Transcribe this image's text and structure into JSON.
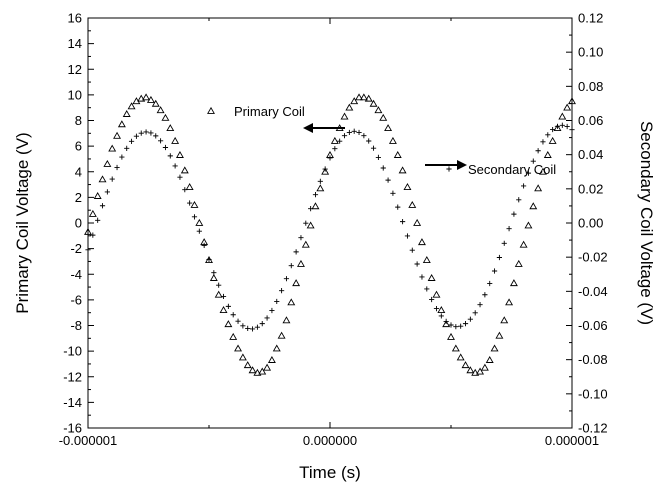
{
  "chart_data": {
    "type": "scatter",
    "xlabel": "Time (s)",
    "ylabel_left": "Primary Coil Voltage (V)",
    "ylabel_right": "Secondary Coil Voltage (V)",
    "xlim": [
      -1e-06,
      1e-06
    ],
    "ylim_left": [
      -16,
      16
    ],
    "ylim_right": [
      -0.12,
      0.12
    ],
    "x_tick_labels": [
      "-0.000001",
      "0.000000",
      "0.000001"
    ],
    "y_left_tick_labels": [
      "-16",
      "-14",
      "-12",
      "-10",
      "-8",
      "-6",
      "-4",
      "-2",
      "0",
      "2",
      "4",
      "6",
      "8",
      "10",
      "12",
      "14",
      "16"
    ],
    "y_right_tick_labels": [
      "-0.12",
      "-0.10",
      "-0.08",
      "-0.06",
      "-0.04",
      "-0.02",
      "0.00",
      "0.02",
      "0.04",
      "0.06",
      "0.08",
      "0.10",
      "0.12"
    ],
    "grid": false,
    "legend": [
      {
        "name": "Primary Coil",
        "marker": "triangle-open",
        "axis": "left"
      },
      {
        "name": "Secondary Coil",
        "marker": "plus",
        "axis": "right"
      }
    ],
    "series": [
      {
        "name": "Primary Coil",
        "marker": "triangle-open",
        "axis": "left",
        "x": [
          -1e-06,
          -9.8e-07,
          -9.6e-07,
          -9.4e-07,
          -9.2e-07,
          -9e-07,
          -8.8e-07,
          -8.6e-07,
          -8.4e-07,
          -8.2e-07,
          -8e-07,
          -7.8e-07,
          -7.6e-07,
          -7.4e-07,
          -7.2e-07,
          -7e-07,
          -6.8e-07,
          -6.6e-07,
          -6.4e-07,
          -6.2e-07,
          -6e-07,
          -5.8e-07,
          -5.6e-07,
          -5.4e-07,
          -5.2e-07,
          -5e-07,
          -4.8e-07,
          -4.6e-07,
          -4.4e-07,
          -4.2e-07,
          -4e-07,
          -3.8e-07,
          -3.6e-07,
          -3.4e-07,
          -3.2e-07,
          -3e-07,
          -2.8e-07,
          -2.6e-07,
          -2.4e-07,
          -2.2e-07,
          -2e-07,
          -1.8e-07,
          -1.6e-07,
          -1.4e-07,
          -1.2e-07,
          -1e-07,
          -8e-08,
          -6e-08,
          -4e-08,
          -2e-08,
          0.0,
          2e-08,
          4e-08,
          6e-08,
          8e-08,
          1e-07,
          1.2e-07,
          1.4e-07,
          1.6e-07,
          1.8e-07,
          2e-07,
          2.2e-07,
          2.4e-07,
          2.6e-07,
          2.8e-07,
          3e-07,
          3.2e-07,
          3.4e-07,
          3.6e-07,
          3.8e-07,
          4e-07,
          4.2e-07,
          4.4e-07,
          4.6e-07,
          4.8e-07,
          5e-07,
          5.2e-07,
          5.4e-07,
          5.6e-07,
          5.8e-07,
          6e-07,
          6.2e-07,
          6.4e-07,
          6.6e-07,
          6.8e-07,
          7e-07,
          7.2e-07,
          7.4e-07,
          7.6e-07,
          7.8e-07,
          8e-07,
          8.2e-07,
          8.4e-07,
          8.6e-07,
          8.8e-07,
          9e-07,
          9.2e-07,
          9.4e-07,
          9.6e-07,
          9.8e-07,
          1e-06
        ],
        "y": [
          -0.7,
          0.7,
          2.1,
          3.4,
          4.6,
          5.8,
          6.8,
          7.7,
          8.5,
          9.1,
          9.5,
          9.7,
          9.8,
          9.6,
          9.3,
          8.8,
          8.2,
          7.4,
          6.4,
          5.3,
          4.1,
          2.8,
          1.4,
          -0.0,
          -1.5,
          -2.9,
          -4.3,
          -5.6,
          -6.8,
          -7.9,
          -8.9,
          -9.8,
          -10.5,
          -11.1,
          -11.5,
          -11.7,
          -11.6,
          -11.3,
          -10.7,
          -9.8,
          -8.8,
          -7.6,
          -6.2,
          -4.7,
          -3.2,
          -1.7,
          -0.2,
          1.3,
          2.7,
          4.0,
          5.3,
          6.4,
          7.4,
          8.3,
          9.0,
          9.5,
          9.8,
          9.8,
          9.7,
          9.3,
          8.8,
          8.2,
          7.4,
          6.4,
          5.3,
          4.1,
          2.8,
          1.4,
          -0.0,
          -1.5,
          -2.9,
          -4.3,
          -5.6,
          -6.8,
          -7.9,
          -8.9,
          -9.8,
          -10.5,
          -11.1,
          -11.5,
          -11.7,
          -11.6,
          -11.3,
          -10.7,
          -9.8,
          -8.8,
          -7.6,
          -6.2,
          -4.7,
          -3.2,
          -1.7,
          -0.2,
          1.3,
          2.7,
          4.0,
          5.3,
          6.4,
          7.4,
          8.3,
          9.0,
          9.5
        ]
      },
      {
        "name": "Secondary Coil",
        "marker": "plus",
        "axis": "right",
        "x": [
          -1e-06,
          -9.8e-07,
          -9.6e-07,
          -9.4e-07,
          -9.2e-07,
          -9e-07,
          -8.8e-07,
          -8.6e-07,
          -8.4e-07,
          -8.2e-07,
          -8e-07,
          -7.8e-07,
          -7.6e-07,
          -7.4e-07,
          -7.2e-07,
          -7e-07,
          -6.8e-07,
          -6.6e-07,
          -6.4e-07,
          -6.2e-07,
          -6e-07,
          -5.8e-07,
          -5.6e-07,
          -5.4e-07,
          -5.2e-07,
          -5e-07,
          -4.8e-07,
          -4.6e-07,
          -4.4e-07,
          -4.2e-07,
          -4e-07,
          -3.8e-07,
          -3.6e-07,
          -3.4e-07,
          -3.2e-07,
          -3e-07,
          -2.8e-07,
          -2.6e-07,
          -2.4e-07,
          -2.2e-07,
          -2e-07,
          -1.8e-07,
          -1.6e-07,
          -1.4e-07,
          -1.2e-07,
          -1e-07,
          -8e-08,
          -6e-08,
          -4e-08,
          -2e-08,
          0.0,
          2e-08,
          4e-08,
          6e-08,
          8e-08,
          1e-07,
          1.2e-07,
          1.4e-07,
          1.6e-07,
          1.8e-07,
          2e-07,
          2.2e-07,
          2.4e-07,
          2.6e-07,
          2.8e-07,
          3e-07,
          3.2e-07,
          3.4e-07,
          3.6e-07,
          3.8e-07,
          4e-07,
          4.2e-07,
          4.4e-07,
          4.6e-07,
          4.8e-07,
          5e-07,
          5.2e-07,
          5.4e-07,
          5.6e-07,
          5.8e-07,
          6e-07,
          6.2e-07,
          6.4e-07,
          6.6e-07,
          6.8e-07,
          7e-07,
          7.2e-07,
          7.4e-07,
          7.6e-07,
          7.8e-07,
          8e-07,
          8.2e-07,
          8.4e-07,
          8.6e-07,
          8.8e-07,
          9e-07,
          9.2e-07,
          9.4e-07,
          9.6e-07,
          9.8e-07,
          1e-06
        ],
        "y": [
          -0.0157,
          -0.0071,
          0.0016,
          0.0101,
          0.0182,
          0.0257,
          0.0325,
          0.0386,
          0.0437,
          0.0478,
          0.0508,
          0.0526,
          0.0533,
          0.0527,
          0.051,
          0.0481,
          0.0442,
          0.0393,
          0.0334,
          0.0268,
          0.0195,
          0.0117,
          0.0036,
          -0.0048,
          -0.0131,
          -0.0213,
          -0.0291,
          -0.0364,
          -0.043,
          -0.0488,
          -0.0537,
          -0.0575,
          -0.0602,
          -0.0617,
          -0.062,
          -0.061,
          -0.0589,
          -0.0556,
          -0.0512,
          -0.0459,
          -0.0396,
          -0.0326,
          -0.025,
          -0.0169,
          -0.0086,
          -0.0001,
          0.0084,
          0.0166,
          0.0244,
          0.0316,
          0.0381,
          0.0435,
          0.0479,
          0.0511,
          0.053,
          0.0537,
          0.053,
          0.0511,
          0.048,
          0.0438,
          0.0384,
          0.0322,
          0.0251,
          0.0174,
          0.0093,
          0.0008,
          -0.0076,
          -0.0159,
          -0.024,
          -0.0316,
          -0.0386,
          -0.0448,
          -0.0501,
          -0.0544,
          -0.0576,
          -0.0597,
          -0.0607,
          -0.0604,
          -0.0589,
          -0.0563,
          -0.0526,
          -0.0478,
          -0.042,
          -0.0354,
          -0.0281,
          -0.0202,
          -0.0119,
          -0.0033,
          0.0052,
          0.0136,
          0.0217,
          0.0292,
          0.0362,
          0.0423,
          0.0475,
          0.0516,
          0.0547,
          0.0566,
          0.0572,
          0.0565,
          0.0546
        ]
      }
    ]
  }
}
